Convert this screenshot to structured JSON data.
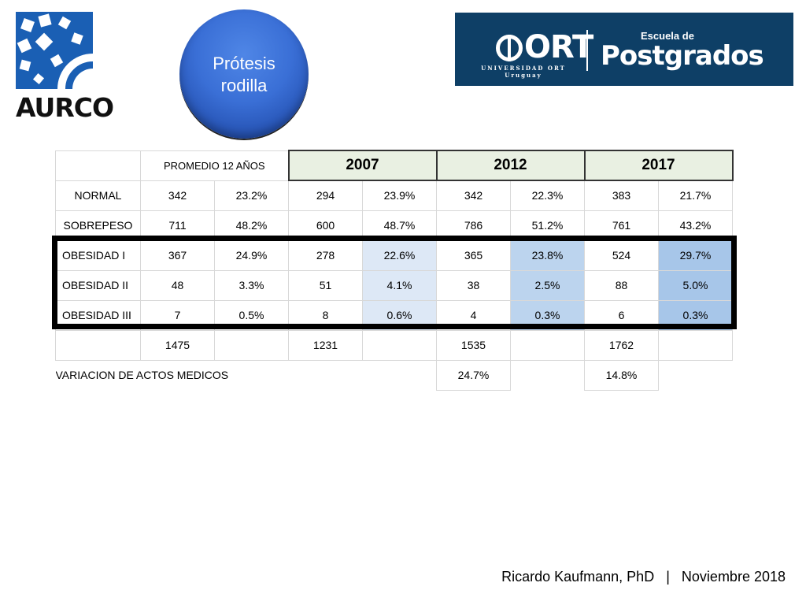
{
  "logos": {
    "aurco_text": "AURCO",
    "ort_text": "ORT",
    "ort_university": "UNIVERSIDAD ORT",
    "ort_country": "Uruguay",
    "escuela_text": "Escuela de",
    "postgrados_text": "Postgrados"
  },
  "title_circle": {
    "line1": "Prótesis",
    "line2": "rodilla"
  },
  "table": {
    "header": {
      "promedio": "PROMEDIO 12 AÑOS",
      "y2007": "2007",
      "y2012": "2012",
      "y2017": "2017"
    },
    "rows": [
      {
        "label": "NORMAL",
        "cells": [
          "342",
          "23.2%",
          "294",
          "23.9%",
          "342",
          "22.3%",
          "383",
          "21.7%"
        ]
      },
      {
        "label": "SOBREPESO",
        "cells": [
          "711",
          "48.2%",
          "600",
          "48.7%",
          "786",
          "51.2%",
          "761",
          "43.2%"
        ]
      },
      {
        "label": "OBESIDAD I",
        "cells": [
          "367",
          "24.9%",
          "278",
          "22.6%",
          "365",
          "23.8%",
          "524",
          "29.7%"
        ]
      },
      {
        "label": "OBESIDAD II",
        "cells": [
          "48",
          "3.3%",
          "51",
          "4.1%",
          "38",
          "2.5%",
          "88",
          "5.0%"
        ]
      },
      {
        "label": "OBESIDAD III",
        "cells": [
          "7",
          "0.5%",
          "8",
          "0.6%",
          "4",
          "0.3%",
          "6",
          "0.3%"
        ]
      }
    ],
    "totals": [
      "1475",
      "1231",
      "1535",
      "1762"
    ],
    "variation": {
      "label": "VARIACION DE ACTOS MEDICOS",
      "v2012": "24.7%",
      "v2017": "14.8%"
    },
    "highlight_colors": {
      "2007": "#dde8f6",
      "2012": "#bcd4ee",
      "2017": "#a7c6e9"
    }
  },
  "footer": {
    "author": "Ricardo Kaufmann, PhD",
    "separator": "|",
    "date": "Noviembre 2018"
  }
}
